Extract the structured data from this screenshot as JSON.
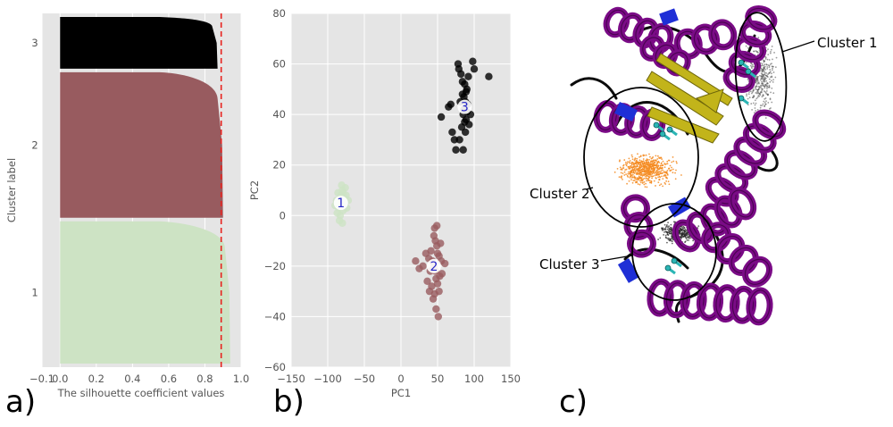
{
  "panels": {
    "a_label": "a)",
    "b_label": "b)",
    "c_label": "c)"
  },
  "chart_data": [
    {
      "type": "area",
      "panel": "a",
      "title": "",
      "xlabel": "The silhouette coefficient values",
      "ylabel": "Cluster label",
      "xlim": [
        -0.1,
        1.0
      ],
      "xticks": [
        -0.1,
        0.0,
        0.2,
        0.4,
        0.6,
        0.8,
        1.0
      ],
      "xtick_labels": [
        "−0.1",
        "0.0",
        "0.2",
        "0.4",
        "0.6",
        "0.8",
        "1.0"
      ],
      "grid": true,
      "average_silhouette": 0.89,
      "clusters": [
        {
          "label": "1",
          "color": "#cde3c4",
          "max": 0.94,
          "knee": 0.91,
          "share": 0.44
        },
        {
          "label": "2",
          "color": "#985b5f",
          "max": 0.9,
          "knee": 0.87,
          "share": 0.45
        },
        {
          "label": "3",
          "color": "#000000",
          "max": 0.87,
          "knee": 0.84,
          "share": 0.16
        }
      ],
      "reference_line": {
        "value": 0.89,
        "color": "#e8231f",
        "style": "dashed"
      }
    },
    {
      "type": "scatter",
      "panel": "b",
      "title": "",
      "xlabel": "PC1",
      "ylabel": "PC2",
      "xlim": [
        -150,
        150
      ],
      "ylim": [
        -60,
        80
      ],
      "xticks": [
        -150,
        -100,
        -50,
        0,
        50,
        100,
        150
      ],
      "xtick_labels": [
        "−150",
        "−100",
        "−50",
        "0",
        "50",
        "100",
        "150"
      ],
      "yticks": [
        -60,
        -40,
        -20,
        0,
        20,
        40,
        60,
        80
      ],
      "ytick_labels": [
        "−60",
        "−40",
        "−20",
        "0",
        "20",
        "40",
        "60",
        "80"
      ],
      "grid": true,
      "series": [
        {
          "label": "1",
          "color": "#cde3c4",
          "points": [
            [
              -82,
              5
            ],
            [
              -78,
              7
            ],
            [
              -85,
              3
            ],
            [
              -80,
              10
            ],
            [
              -75,
              8
            ],
            [
              -88,
              6
            ],
            [
              -83,
              0
            ],
            [
              -79,
              2
            ],
            [
              -72,
              6
            ],
            [
              -86,
              9
            ],
            [
              -81,
              12
            ],
            [
              -77,
              4
            ],
            [
              -84,
              -2
            ],
            [
              -90,
              4
            ],
            [
              -76,
              11
            ],
            [
              -82,
              8
            ],
            [
              -80,
              -3
            ],
            [
              -87,
              1
            ],
            [
              -74,
              3
            ],
            [
              -79,
              9
            ]
          ],
          "center": [
            -82,
            5
          ]
        },
        {
          "label": "2",
          "color": "#985b5f",
          "points": [
            [
              45,
              -20
            ],
            [
              50,
              -15
            ],
            [
              48,
              -25
            ],
            [
              40,
              -22
            ],
            [
              55,
              -18
            ],
            [
              47,
              -10
            ],
            [
              42,
              -28
            ],
            [
              52,
              -30
            ],
            [
              38,
              -17
            ],
            [
              46,
              -5
            ],
            [
              53,
              -24
            ],
            [
              44,
              -33
            ],
            [
              49,
              -12
            ],
            [
              30,
              -20
            ],
            [
              20,
              -18
            ],
            [
              60,
              -19
            ],
            [
              45,
              -8
            ],
            [
              50,
              -27
            ],
            [
              41,
              -14
            ],
            [
              54,
              -11
            ],
            [
              48,
              -37
            ],
            [
              51,
              -40
            ],
            [
              36,
              -26
            ],
            [
              47,
              -22
            ],
            [
              43,
              -18
            ],
            [
              49,
              -4
            ],
            [
              46,
              -31
            ],
            [
              56,
              -23
            ],
            [
              39,
              -30
            ],
            [
              52,
              -16
            ],
            [
              25,
              -21
            ],
            [
              34,
              -15
            ]
          ],
          "center": [
            45,
            -20
          ]
        },
        {
          "label": "3",
          "color": "#000000",
          "points": [
            [
              88,
              45
            ],
            [
              85,
              40
            ],
            [
              90,
              50
            ],
            [
              83,
              35
            ],
            [
              92,
              55
            ],
            [
              86,
              42
            ],
            [
              89,
              38
            ],
            [
              84,
              48
            ],
            [
              91,
              44
            ],
            [
              87,
              52
            ],
            [
              80,
              30
            ],
            [
              95,
              40
            ],
            [
              78,
              60
            ],
            [
              100,
              58
            ],
            [
              120,
              55
            ],
            [
              55,
              39
            ],
            [
              65,
              43
            ],
            [
              70,
              33
            ],
            [
              85,
              26
            ],
            [
              75,
              26
            ],
            [
              82,
              56
            ],
            [
              93,
              36
            ],
            [
              86,
              47
            ],
            [
              88,
              33
            ],
            [
              84,
              53
            ],
            [
              90,
              41
            ],
            [
              87,
              37
            ],
            [
              81,
              45
            ],
            [
              89,
              49
            ],
            [
              98,
              61
            ],
            [
              73,
              30
            ],
            [
              68,
              44
            ],
            [
              79,
              58
            ]
          ],
          "center": [
            87,
            43
          ]
        }
      ]
    }
  ],
  "image_c": {
    "labels": {
      "cluster1": "Cluster 1",
      "cluster2": "Cluster 2",
      "cluster3": "Cluster 3"
    },
    "colors": {
      "helix": "#7a0b86",
      "helix_dark": "#4b0352",
      "helix_blue": "#1f2fd6",
      "sheet": "#c2b41a",
      "coil": "#0b0b0b",
      "stick": "#2bb5b5",
      "cluster2_cloud": "#f5891f",
      "cluster13_cloud": "#222222"
    }
  }
}
